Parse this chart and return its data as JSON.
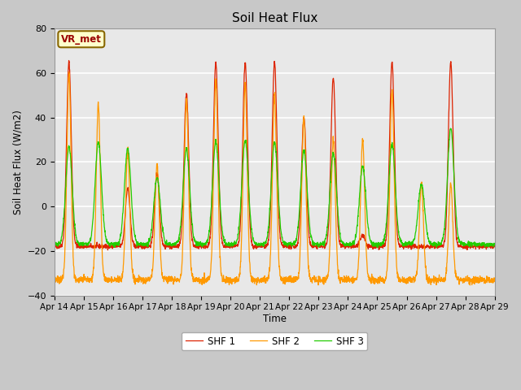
{
  "title": "Soil Heat Flux",
  "ylabel": "Soil Heat Flux (W/m2)",
  "xlabel": "Time",
  "ylim": [
    -40,
    80
  ],
  "yticks": [
    -40,
    -20,
    0,
    20,
    40,
    60,
    80
  ],
  "xtick_labels": [
    "Apr 14",
    "Apr 15",
    "Apr 16",
    "Apr 17",
    "Apr 18",
    "Apr 19",
    "Apr 20",
    "Apr 21",
    "Apr 22",
    "Apr 23",
    "Apr 24",
    "Apr 25",
    "Apr 26",
    "Apr 27",
    "Apr 28",
    "Apr 29"
  ],
  "legend_labels": [
    "SHF 1",
    "SHF 2",
    "SHF 3"
  ],
  "line_colors": [
    "#dd2200",
    "#ff9900",
    "#22cc00"
  ],
  "annotation_text": "VR_met",
  "annotation_bg": "#ffffcc",
  "annotation_border": "#886600",
  "fig_facecolor": "#c8c8c8",
  "ax_facecolor": "#e8e8e8",
  "grid_color": "#ffffff"
}
